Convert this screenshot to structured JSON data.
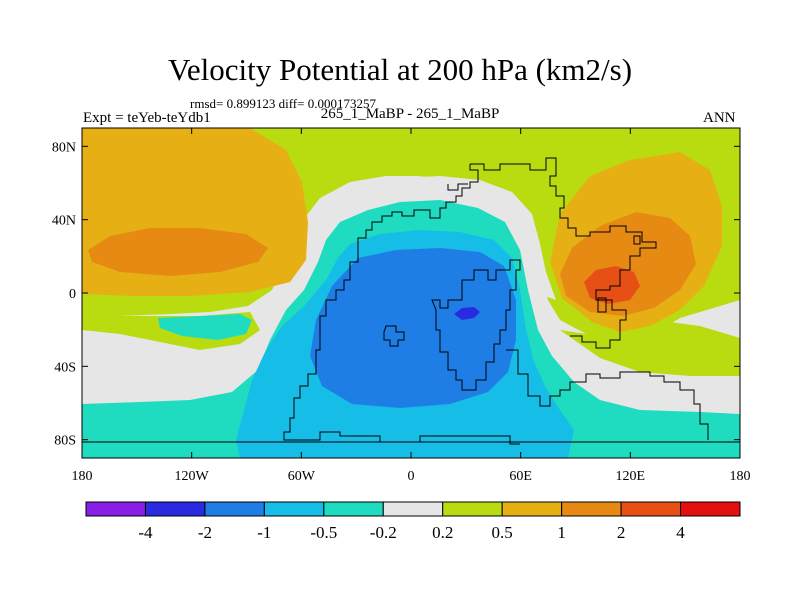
{
  "chart_data": {
    "type": "heatmap",
    "title": "Velocity Potential at 200 hPa (km2/s)",
    "stats_line": "rmsd= 0.899123 diff= 0.000173257",
    "left_label": "Expt = teYeb-teYdb1",
    "center_label": "265_1_MaBP - 265_1_MaBP",
    "right_label": "ANN",
    "x_axis": {
      "range": [
        -180,
        180
      ],
      "tick_values": [
        -180,
        -120,
        -60,
        0,
        60,
        120,
        180
      ],
      "tick_labels": [
        "180",
        "120W",
        "60W",
        "0",
        "60E",
        "120E",
        "180"
      ]
    },
    "y_axis": {
      "range": [
        -90,
        90
      ],
      "tick_values": [
        80,
        40,
        0,
        -40,
        -80
      ],
      "tick_labels": [
        "80N",
        "40N",
        "0",
        "40S",
        "80S"
      ]
    },
    "colorbar": {
      "levels": [
        "-4",
        "-2",
        "-1",
        "-0.5",
        "-0.2",
        "0.2",
        "0.5",
        "1",
        "2",
        "4"
      ],
      "colors": [
        "#8a1fe6",
        "#2a2ae0",
        "#1f7ee6",
        "#16bde6",
        "#1fdcc0",
        "#e6e6e6",
        "#b8dc10",
        "#e6b014",
        "#e68a14",
        "#e65014",
        "#e60f0f"
      ]
    }
  }
}
